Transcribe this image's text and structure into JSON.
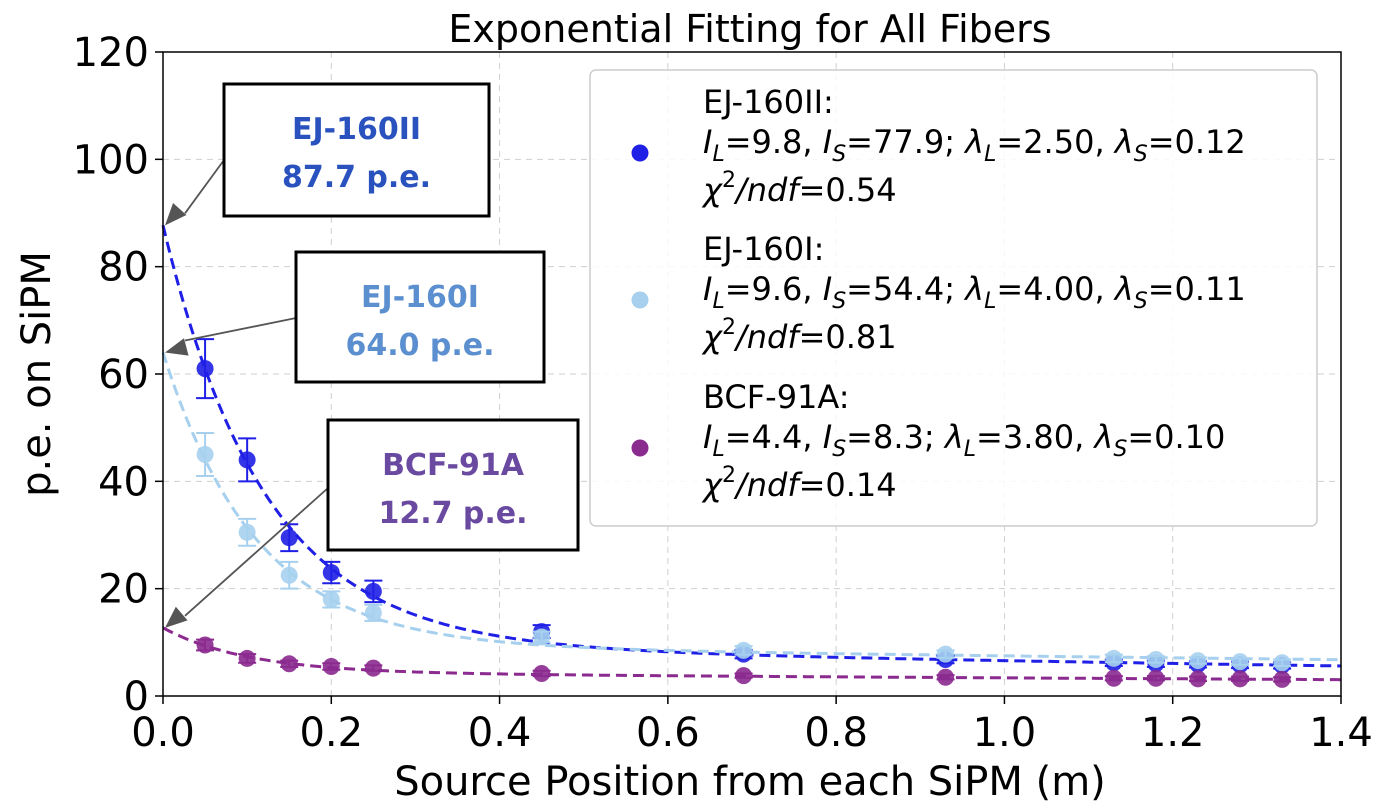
{
  "chart_data": {
    "type": "scatter",
    "title": "Exponential Fitting for All Fibers",
    "xlabel": "Source Position from each SiPM (m)",
    "ylabel": "p.e. on SiPM",
    "xlim": [
      0.0,
      1.4
    ],
    "ylim": [
      0,
      120
    ],
    "xticks": [
      "0.0",
      "0.2",
      "0.4",
      "0.6",
      "0.8",
      "1.0",
      "1.2",
      "1.4"
    ],
    "yticks": [
      "0",
      "20",
      "40",
      "60",
      "80",
      "100",
      "120"
    ],
    "grid": true,
    "legend_position": "top-right",
    "series": [
      {
        "name": "EJ-160II:",
        "color": "#1f1fe6",
        "fit": {
          "IL": 9.8,
          "IS": 77.9,
          "lambdaL": 2.5,
          "lambdaS": 0.12
        },
        "x": [
          0.05,
          0.1,
          0.15,
          0.2,
          0.25,
          0.45,
          0.69,
          0.93,
          1.13,
          1.18,
          1.23,
          1.28,
          1.33
        ],
        "y": [
          61.0,
          44.0,
          29.5,
          23.0,
          19.5,
          12.0,
          7.8,
          6.8,
          6.2,
          6.0,
          5.9,
          5.8,
          5.7
        ],
        "err": [
          5.5,
          4.0,
          2.5,
          2.0,
          2.0,
          1.2,
          0.8,
          0.7,
          0.6,
          0.6,
          0.6,
          0.6,
          0.6
        ],
        "legend_params": "=9.8, ",
        "legend_params2": "=77.9; ",
        "legend_params3": "=2.50, ",
        "legend_params4": "=0.12",
        "chi2": "=0.54"
      },
      {
        "name": "EJ-160I:",
        "color": "#a6d0ee",
        "fit": {
          "IL": 9.6,
          "IS": 54.4,
          "lambdaL": 4.0,
          "lambdaS": 0.11
        },
        "x": [
          0.05,
          0.1,
          0.15,
          0.2,
          0.25,
          0.45,
          0.69,
          0.93,
          1.13,
          1.18,
          1.23,
          1.28,
          1.33
        ],
        "y": [
          45.0,
          30.5,
          22.5,
          18.0,
          15.5,
          11.0,
          8.5,
          7.8,
          7.0,
          6.8,
          6.6,
          6.4,
          6.2
        ],
        "err": [
          4.0,
          2.5,
          2.5,
          1.5,
          1.5,
          1.0,
          0.8,
          0.7,
          0.7,
          0.6,
          0.6,
          0.6,
          0.6
        ],
        "legend_params": "=9.6, ",
        "legend_params2": "=54.4; ",
        "legend_params3": "=4.00, ",
        "legend_params4": "=0.11",
        "chi2": "=0.81"
      },
      {
        "name": "BCF-91A:",
        "color": "#8b2a8f",
        "fit": {
          "IL": 4.4,
          "IS": 8.3,
          "lambdaL": 3.8,
          "lambdaS": 0.1
        },
        "x": [
          0.05,
          0.1,
          0.15,
          0.2,
          0.25,
          0.45,
          0.69,
          0.93,
          1.13,
          1.18,
          1.23,
          1.28,
          1.33
        ],
        "y": [
          9.5,
          7.0,
          6.0,
          5.5,
          5.2,
          4.2,
          3.8,
          3.5,
          3.3,
          3.3,
          3.2,
          3.2,
          3.1
        ],
        "err": [
          1.0,
          0.8,
          0.6,
          0.6,
          0.5,
          0.5,
          0.4,
          0.4,
          0.4,
          0.4,
          0.4,
          0.4,
          0.4
        ],
        "legend_params": "=4.4, ",
        "legend_params2": "=8.3; ",
        "legend_params3": "=3.80, ",
        "legend_params4": "=0.10",
        "chi2": "=0.14"
      }
    ],
    "annotations": [
      {
        "name": "EJ-160II",
        "value": "87.7 p.e.",
        "target_x": 0.0,
        "target_y": 87.7,
        "color": "#2a52be"
      },
      {
        "name": "EJ-160I",
        "value": "64.0 p.e.",
        "target_x": 0.0,
        "target_y": 64.0,
        "color": "#5b8fcf"
      },
      {
        "name": "BCF-91A",
        "value": "12.7 p.e.",
        "target_x": 0.0,
        "target_y": 12.7,
        "color": "#6a4aa0"
      }
    ],
    "legend_symbols": {
      "I": "I",
      "lambda": "λ",
      "chi": "χ",
      "ndf": "/ndf",
      "L": "L",
      "S": "S",
      "two": "2"
    }
  }
}
